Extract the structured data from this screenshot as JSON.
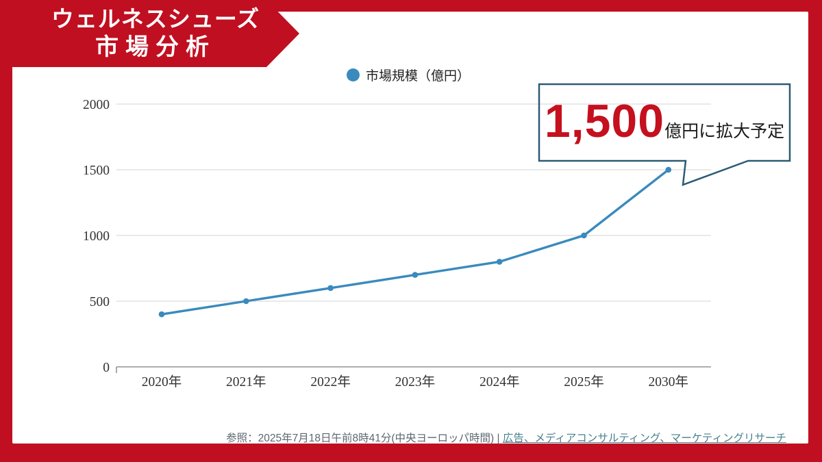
{
  "frame": {
    "border_color": "#C00F21"
  },
  "banner": {
    "title_line1": "ウェルネスシューズ",
    "title_line2": "市場分析",
    "background_color": "#C00F21",
    "text_color": "#FFFFFF"
  },
  "legend": {
    "label": "市場規模（億円）",
    "marker_color": "#3A8ABD"
  },
  "callout": {
    "value": "1,500",
    "suffix": "億円に拡大予定",
    "value_color": "#C5101E",
    "border_color": "#2C5A75",
    "points_to": "2030年"
  },
  "footer": {
    "reference": "参照：2025年7月18日午前8時41分(中央ヨーロッパ時間) |",
    "link": "広告、メディアコンサルティング、マーケティングリサーチ"
  },
  "chart_data": {
    "type": "line",
    "categories": [
      "2020年",
      "2021年",
      "2022年",
      "2023年",
      "2024年",
      "2025年",
      "2030年"
    ],
    "series": [
      {
        "name": "市場規模（億円）",
        "values": [
          400,
          500,
          600,
          700,
          800,
          1000,
          1500
        ]
      }
    ],
    "title": "",
    "xlabel": "",
    "ylabel": "",
    "ylim": [
      0,
      2000
    ],
    "yticks": [
      0,
      500,
      1000,
      1500,
      2000
    ],
    "grid": true,
    "legend_position": "top",
    "line_color": "#3A8ABD",
    "gridline_color": "#DCDCDC",
    "axis_line_color": "#949494",
    "annotation": "1,500億円に拡大予定"
  }
}
